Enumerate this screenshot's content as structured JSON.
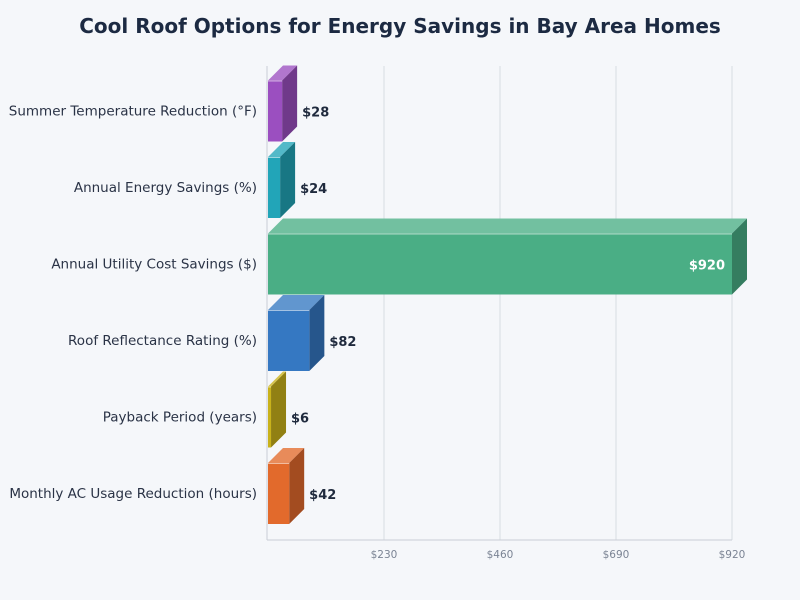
{
  "chart_data": {
    "type": "bar",
    "orientation": "horizontal",
    "title": "Cool Roof Options for Energy Savings in Bay Area Homes",
    "categories": [
      "Summer Temperature Reduction (°F)",
      "Annual Energy Savings (%)",
      "Annual Utility Cost Savings ($)",
      "Roof Reflectance Rating (%)",
      "Payback Period (years)",
      "Monthly AC Usage Reduction (hours)"
    ],
    "values": [
      28,
      24,
      920,
      82,
      6,
      42
    ],
    "value_labels": [
      "$28",
      "$24",
      "$920",
      "$82",
      "$6",
      "$42"
    ],
    "colors": [
      "#9b4fc0",
      "#22a5b8",
      "#4aae85",
      "#3578c2",
      "#c9b21a",
      "#e26a2c"
    ],
    "xlim": [
      0,
      920
    ],
    "xticks": [
      230,
      460,
      690,
      920
    ],
    "xtick_labels": [
      "$230",
      "$460",
      "$690",
      "$920"
    ],
    "grid": true,
    "style": "3d"
  }
}
